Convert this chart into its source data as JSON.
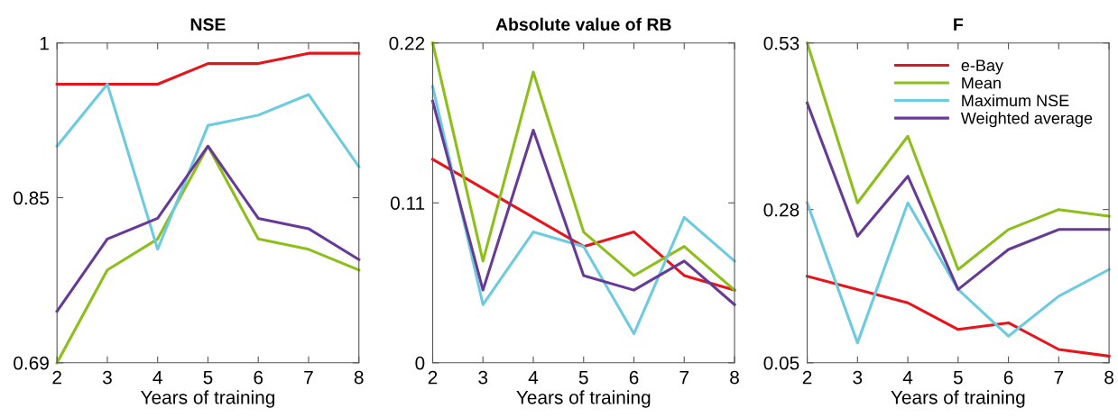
{
  "chart_data": [
    {
      "type": "line",
      "title": "NSE",
      "xlabel": "Years of training",
      "x": [
        2,
        3,
        4,
        5,
        6,
        7,
        8
      ],
      "xlim": [
        2,
        8
      ],
      "xticks": [
        2,
        3,
        4,
        5,
        6,
        7,
        8
      ],
      "ylim": [
        0.69,
        1
      ],
      "yticks": [
        0.69,
        0.85,
        1
      ],
      "grid": false,
      "legend": false,
      "series": [
        {
          "color": "#e8141c",
          "values": [
            0.96,
            0.96,
            0.96,
            0.98,
            0.98,
            0.99,
            0.99
          ]
        },
        {
          "color": "#8cbf1a",
          "values": [
            0.69,
            0.78,
            0.81,
            0.9,
            0.81,
            0.8,
            0.78
          ]
        },
        {
          "color": "#6ccbdf",
          "values": [
            0.9,
            0.96,
            0.8,
            0.92,
            0.93,
            0.95,
            0.88
          ]
        },
        {
          "color": "#663a96",
          "values": [
            0.74,
            0.81,
            0.83,
            0.9,
            0.83,
            0.82,
            0.79
          ]
        }
      ]
    },
    {
      "type": "line",
      "title": "Absolute value of RB",
      "xlabel": "Years of training",
      "x": [
        2,
        3,
        4,
        5,
        6,
        7,
        8
      ],
      "xlim": [
        2,
        8
      ],
      "xticks": [
        2,
        3,
        4,
        5,
        6,
        7,
        8
      ],
      "ylim": [
        0,
        0.22
      ],
      "yticks": [
        0,
        0.11,
        0.22
      ],
      "grid": false,
      "legend": false,
      "series": [
        {
          "color": "#e8141c",
          "values": [
            0.14,
            0.12,
            0.1,
            0.08,
            0.09,
            0.06,
            0.05
          ]
        },
        {
          "color": "#8cbf1a",
          "values": [
            0.22,
            0.07,
            0.2,
            0.09,
            0.06,
            0.08,
            0.05
          ]
        },
        {
          "color": "#6ccbdf",
          "values": [
            0.19,
            0.04,
            0.09,
            0.08,
            0.02,
            0.1,
            0.07
          ]
        },
        {
          "color": "#663a96",
          "values": [
            0.18,
            0.05,
            0.16,
            0.06,
            0.05,
            0.07,
            0.04
          ]
        }
      ]
    },
    {
      "type": "line",
      "title": "F",
      "xlabel": "Years of training",
      "x": [
        2,
        3,
        4,
        5,
        6,
        7,
        8
      ],
      "xlim": [
        2,
        8
      ],
      "xticks": [
        2,
        3,
        4,
        5,
        6,
        7,
        8
      ],
      "ylim": [
        0.05,
        0.53
      ],
      "yticks": [
        0.05,
        0.28,
        0.53
      ],
      "grid": false,
      "legend": "top right",
      "series": [
        {
          "name": "e-Bay",
          "color": "#e8141c",
          "values": [
            0.18,
            0.16,
            0.14,
            0.1,
            0.11,
            0.07,
            0.06
          ]
        },
        {
          "name": "Mean",
          "color": "#8cbf1a",
          "values": [
            0.53,
            0.29,
            0.39,
            0.19,
            0.25,
            0.28,
            0.27
          ]
        },
        {
          "name": "Maximum NSE",
          "color": "#6ccbdf",
          "values": [
            0.29,
            0.08,
            0.29,
            0.16,
            0.09,
            0.15,
            0.19
          ]
        },
        {
          "name": "Weighted average",
          "color": "#663a96",
          "values": [
            0.44,
            0.24,
            0.33,
            0.16,
            0.22,
            0.25,
            0.25
          ]
        }
      ]
    }
  ]
}
